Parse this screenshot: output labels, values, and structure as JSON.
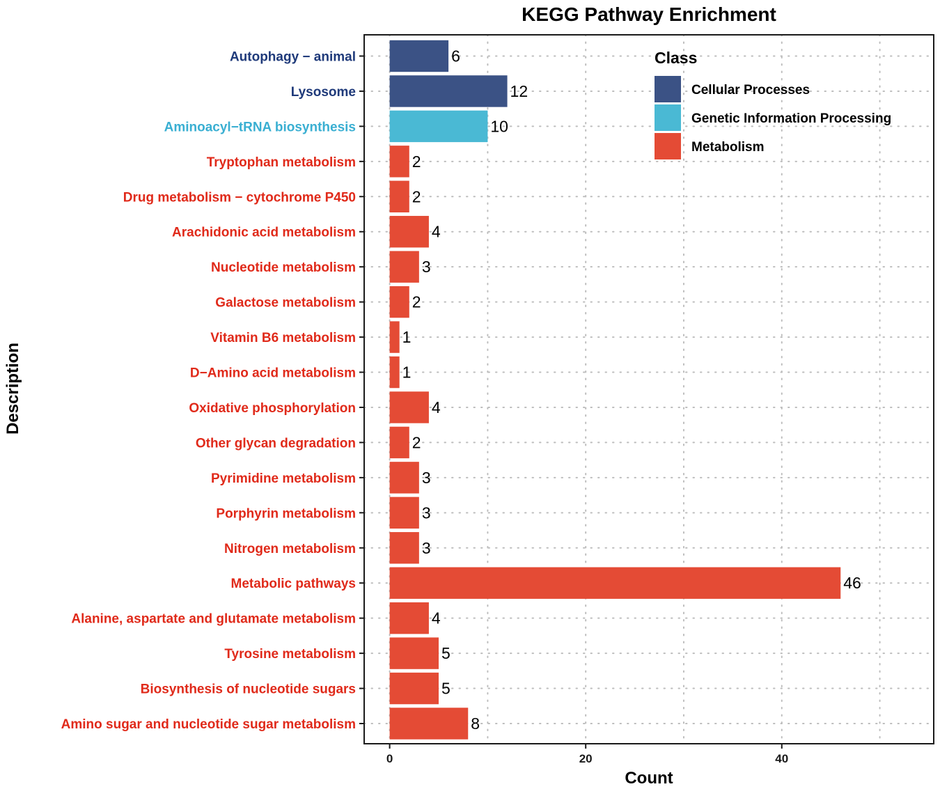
{
  "chart_data": {
    "type": "bar",
    "orientation": "horizontal",
    "title": "KEGG Pathway Enrichment",
    "xlabel": "Count",
    "ylabel": "Description",
    "xlim": [
      -2.6,
      55.5
    ],
    "xticks": [
      0,
      20,
      40
    ],
    "grid": true,
    "legend": {
      "title": "Class",
      "placement": "top-right",
      "entries": [
        {
          "name": "Cellular Processes",
          "color": "#3b5285"
        },
        {
          "name": "Genetic Information Processing",
          "color": "#4ab9d4"
        },
        {
          "name": "Metabolism",
          "color": "#e44b35"
        }
      ]
    },
    "label_colors": {
      "Cellular Processes": "#1f3a7a",
      "Genetic Information Processing": "#3aafd2",
      "Metabolism": "#e02a1a"
    },
    "categories": [
      "Autophagy − animal",
      "Lysosome",
      "Aminoacyl−tRNA biosynthesis",
      "Tryptophan metabolism",
      "Drug metabolism − cytochrome P450",
      "Arachidonic acid metabolism",
      "Nucleotide metabolism",
      "Galactose metabolism",
      "Vitamin B6 metabolism",
      "D−Amino acid metabolism",
      "Oxidative phosphorylation",
      "Other glycan degradation",
      "Pyrimidine metabolism",
      "Porphyrin metabolism",
      "Nitrogen metabolism",
      "Metabolic pathways",
      "Alanine, aspartate and glutamate metabolism",
      "Tyrosine metabolism",
      "Biosynthesis of nucleotide sugars",
      "Amino sugar and nucleotide sugar metabolism"
    ],
    "values": [
      6,
      12,
      10,
      2,
      2,
      4,
      3,
      2,
      1,
      1,
      4,
      2,
      3,
      3,
      3,
      46,
      4,
      5,
      5,
      8
    ],
    "classes": [
      "Cellular Processes",
      "Cellular Processes",
      "Genetic Information Processing",
      "Metabolism",
      "Metabolism",
      "Metabolism",
      "Metabolism",
      "Metabolism",
      "Metabolism",
      "Metabolism",
      "Metabolism",
      "Metabolism",
      "Metabolism",
      "Metabolism",
      "Metabolism",
      "Metabolism",
      "Metabolism",
      "Metabolism",
      "Metabolism",
      "Metabolism"
    ]
  }
}
